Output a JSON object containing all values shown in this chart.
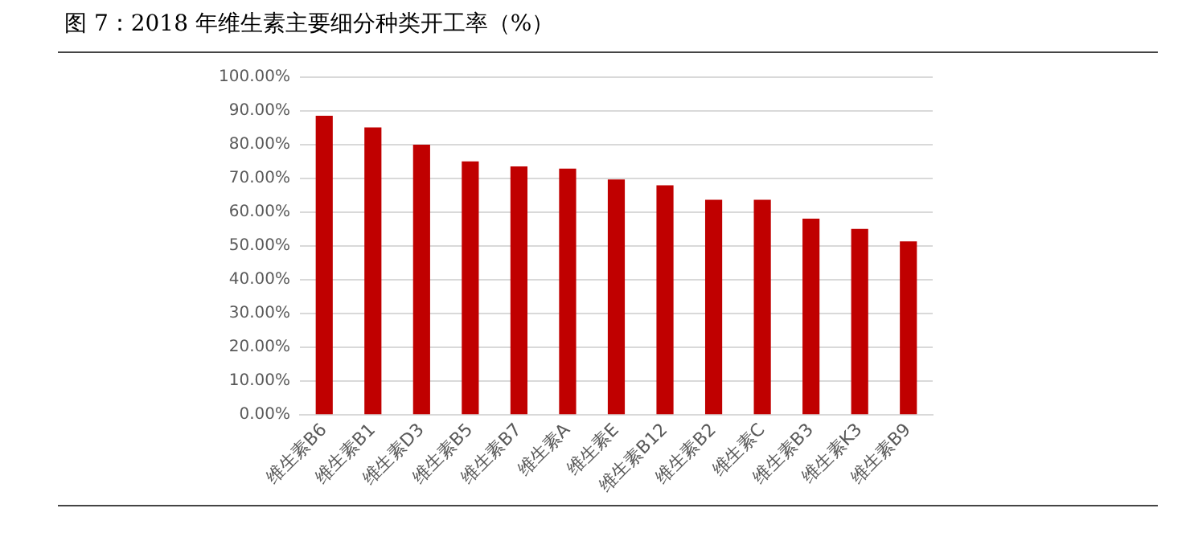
{
  "chart_data": {
    "type": "bar",
    "title": "图 7：2018 年维生素主要细分种类开工率（%）",
    "categories": [
      "维生素B6",
      "维生素B1",
      "维生素D3",
      "维生素B5",
      "维生素B7",
      "维生素A",
      "维生素E",
      "维生素B12",
      "维生素B2",
      "维生素C",
      "维生素B3",
      "维生素K3",
      "维生素B9"
    ],
    "values": [
      88.6,
      85.1,
      80.0,
      75.1,
      73.6,
      72.9,
      69.7,
      68.0,
      63.7,
      63.7,
      58.1,
      55.1,
      51.4
    ],
    "color": "#c00000",
    "ylim": [
      0,
      100
    ],
    "yticks": [
      {
        "value": 0,
        "label": "0.00%"
      },
      {
        "value": 10,
        "label": "10.00%"
      },
      {
        "value": 20,
        "label": "20.00%"
      },
      {
        "value": 30,
        "label": "30.00%"
      },
      {
        "value": 40,
        "label": "40.00%"
      },
      {
        "value": 50,
        "label": "50.00%"
      },
      {
        "value": 60,
        "label": "60.00%"
      },
      {
        "value": 70,
        "label": "70.00%"
      },
      {
        "value": 80,
        "label": "80.00%"
      },
      {
        "value": 90,
        "label": "90.00%"
      },
      {
        "value": 100,
        "label": "100.00%"
      }
    ],
    "grid": "y",
    "legend": false
  }
}
